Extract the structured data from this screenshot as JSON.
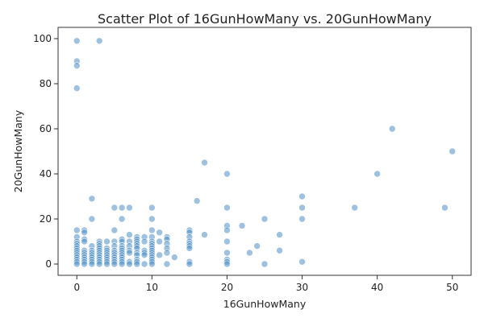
{
  "chart_data": {
    "type": "scatter",
    "title": "Scatter Plot of 16GunHowMany vs. 20GunHowMany",
    "xlabel": "16GunHowMany",
    "ylabel": "20GunHowMany",
    "xlim": [
      -2.5,
      52.5
    ],
    "ylim": [
      -5,
      105
    ],
    "xticks": [
      0,
      10,
      20,
      30,
      40,
      50
    ],
    "yticks": [
      0,
      20,
      40,
      60,
      80,
      100
    ],
    "grid": false,
    "point_color": "#4c8ec4",
    "points": [
      [
        0,
        99
      ],
      [
        0,
        90
      ],
      [
        0,
        88
      ],
      [
        0,
        78
      ],
      [
        3,
        99
      ],
      [
        0,
        15
      ],
      [
        0,
        12
      ],
      [
        0,
        10
      ],
      [
        0,
        9
      ],
      [
        0,
        8
      ],
      [
        0,
        7
      ],
      [
        0,
        6
      ],
      [
        0,
        5
      ],
      [
        0,
        4
      ],
      [
        0,
        3
      ],
      [
        0,
        2
      ],
      [
        0,
        1
      ],
      [
        0,
        0
      ],
      [
        1,
        15
      ],
      [
        1,
        14
      ],
      [
        1,
        11
      ],
      [
        1,
        10
      ],
      [
        1,
        6
      ],
      [
        1,
        5
      ],
      [
        1,
        4
      ],
      [
        1,
        3
      ],
      [
        1,
        2
      ],
      [
        1,
        1
      ],
      [
        1,
        0
      ],
      [
        2,
        29
      ],
      [
        2,
        20
      ],
      [
        2,
        8
      ],
      [
        2,
        6
      ],
      [
        2,
        5
      ],
      [
        2,
        4
      ],
      [
        2,
        3
      ],
      [
        2,
        2
      ],
      [
        2,
        1
      ],
      [
        2,
        0
      ],
      [
        3,
        10
      ],
      [
        3,
        9
      ],
      [
        3,
        8
      ],
      [
        3,
        7
      ],
      [
        3,
        6
      ],
      [
        3,
        5
      ],
      [
        3,
        4
      ],
      [
        3,
        3
      ],
      [
        3,
        2
      ],
      [
        3,
        1
      ],
      [
        3,
        0
      ],
      [
        4,
        10
      ],
      [
        4,
        7
      ],
      [
        4,
        6
      ],
      [
        4,
        5
      ],
      [
        4,
        4
      ],
      [
        4,
        3
      ],
      [
        4,
        2
      ],
      [
        4,
        1
      ],
      [
        4,
        0
      ],
      [
        5,
        25
      ],
      [
        5,
        15
      ],
      [
        5,
        10
      ],
      [
        5,
        8
      ],
      [
        5,
        6
      ],
      [
        5,
        5
      ],
      [
        5,
        4
      ],
      [
        5,
        3
      ],
      [
        5,
        2
      ],
      [
        5,
        1
      ],
      [
        5,
        0
      ],
      [
        6,
        25
      ],
      [
        6,
        20
      ],
      [
        6,
        11
      ],
      [
        6,
        10
      ],
      [
        6,
        8
      ],
      [
        6,
        7
      ],
      [
        6,
        6
      ],
      [
        6,
        5
      ],
      [
        6,
        4
      ],
      [
        6,
        3
      ],
      [
        6,
        2
      ],
      [
        6,
        1
      ],
      [
        6,
        0
      ],
      [
        7,
        25
      ],
      [
        7,
        13
      ],
      [
        7,
        10
      ],
      [
        7,
        8
      ],
      [
        7,
        6
      ],
      [
        7,
        5
      ],
      [
        7,
        1
      ],
      [
        7,
        0
      ],
      [
        8,
        12
      ],
      [
        8,
        11
      ],
      [
        8,
        10
      ],
      [
        8,
        9
      ],
      [
        8,
        8
      ],
      [
        8,
        7
      ],
      [
        8,
        5
      ],
      [
        8,
        4
      ],
      [
        8,
        2
      ],
      [
        8,
        1
      ],
      [
        8,
        0
      ],
      [
        9,
        12
      ],
      [
        9,
        10
      ],
      [
        9,
        6
      ],
      [
        9,
        5
      ],
      [
        9,
        4
      ],
      [
        9,
        0
      ],
      [
        10,
        25
      ],
      [
        10,
        20
      ],
      [
        10,
        15
      ],
      [
        10,
        12
      ],
      [
        10,
        10
      ],
      [
        10,
        9
      ],
      [
        10,
        8
      ],
      [
        10,
        7
      ],
      [
        10,
        6
      ],
      [
        10,
        5
      ],
      [
        10,
        4
      ],
      [
        10,
        3
      ],
      [
        10,
        2
      ],
      [
        10,
        1
      ],
      [
        10,
        0
      ],
      [
        11,
        14
      ],
      [
        11,
        10
      ],
      [
        11,
        4
      ],
      [
        12,
        12
      ],
      [
        12,
        11
      ],
      [
        12,
        9
      ],
      [
        12,
        7
      ],
      [
        12,
        5
      ],
      [
        12,
        0
      ],
      [
        13,
        3
      ],
      [
        15,
        15
      ],
      [
        15,
        14
      ],
      [
        15,
        12
      ],
      [
        15,
        10
      ],
      [
        15,
        9
      ],
      [
        15,
        8
      ],
      [
        15,
        7
      ],
      [
        15,
        1
      ],
      [
        15,
        0
      ],
      [
        16,
        28
      ],
      [
        17,
        45
      ],
      [
        17,
        13
      ],
      [
        20,
        40
      ],
      [
        20,
        25
      ],
      [
        20,
        17
      ],
      [
        20,
        15
      ],
      [
        20,
        10
      ],
      [
        20,
        5
      ],
      [
        20,
        2
      ],
      [
        20,
        1
      ],
      [
        20,
        0
      ],
      [
        22,
        17
      ],
      [
        23,
        5
      ],
      [
        24,
        8
      ],
      [
        25,
        20
      ],
      [
        25,
        0
      ],
      [
        27,
        13
      ],
      [
        27,
        6
      ],
      [
        30,
        30
      ],
      [
        30,
        25
      ],
      [
        30,
        20
      ],
      [
        30,
        1
      ],
      [
        37,
        25
      ],
      [
        40,
        40
      ],
      [
        42,
        60
      ],
      [
        49,
        25
      ],
      [
        50,
        50
      ]
    ]
  }
}
